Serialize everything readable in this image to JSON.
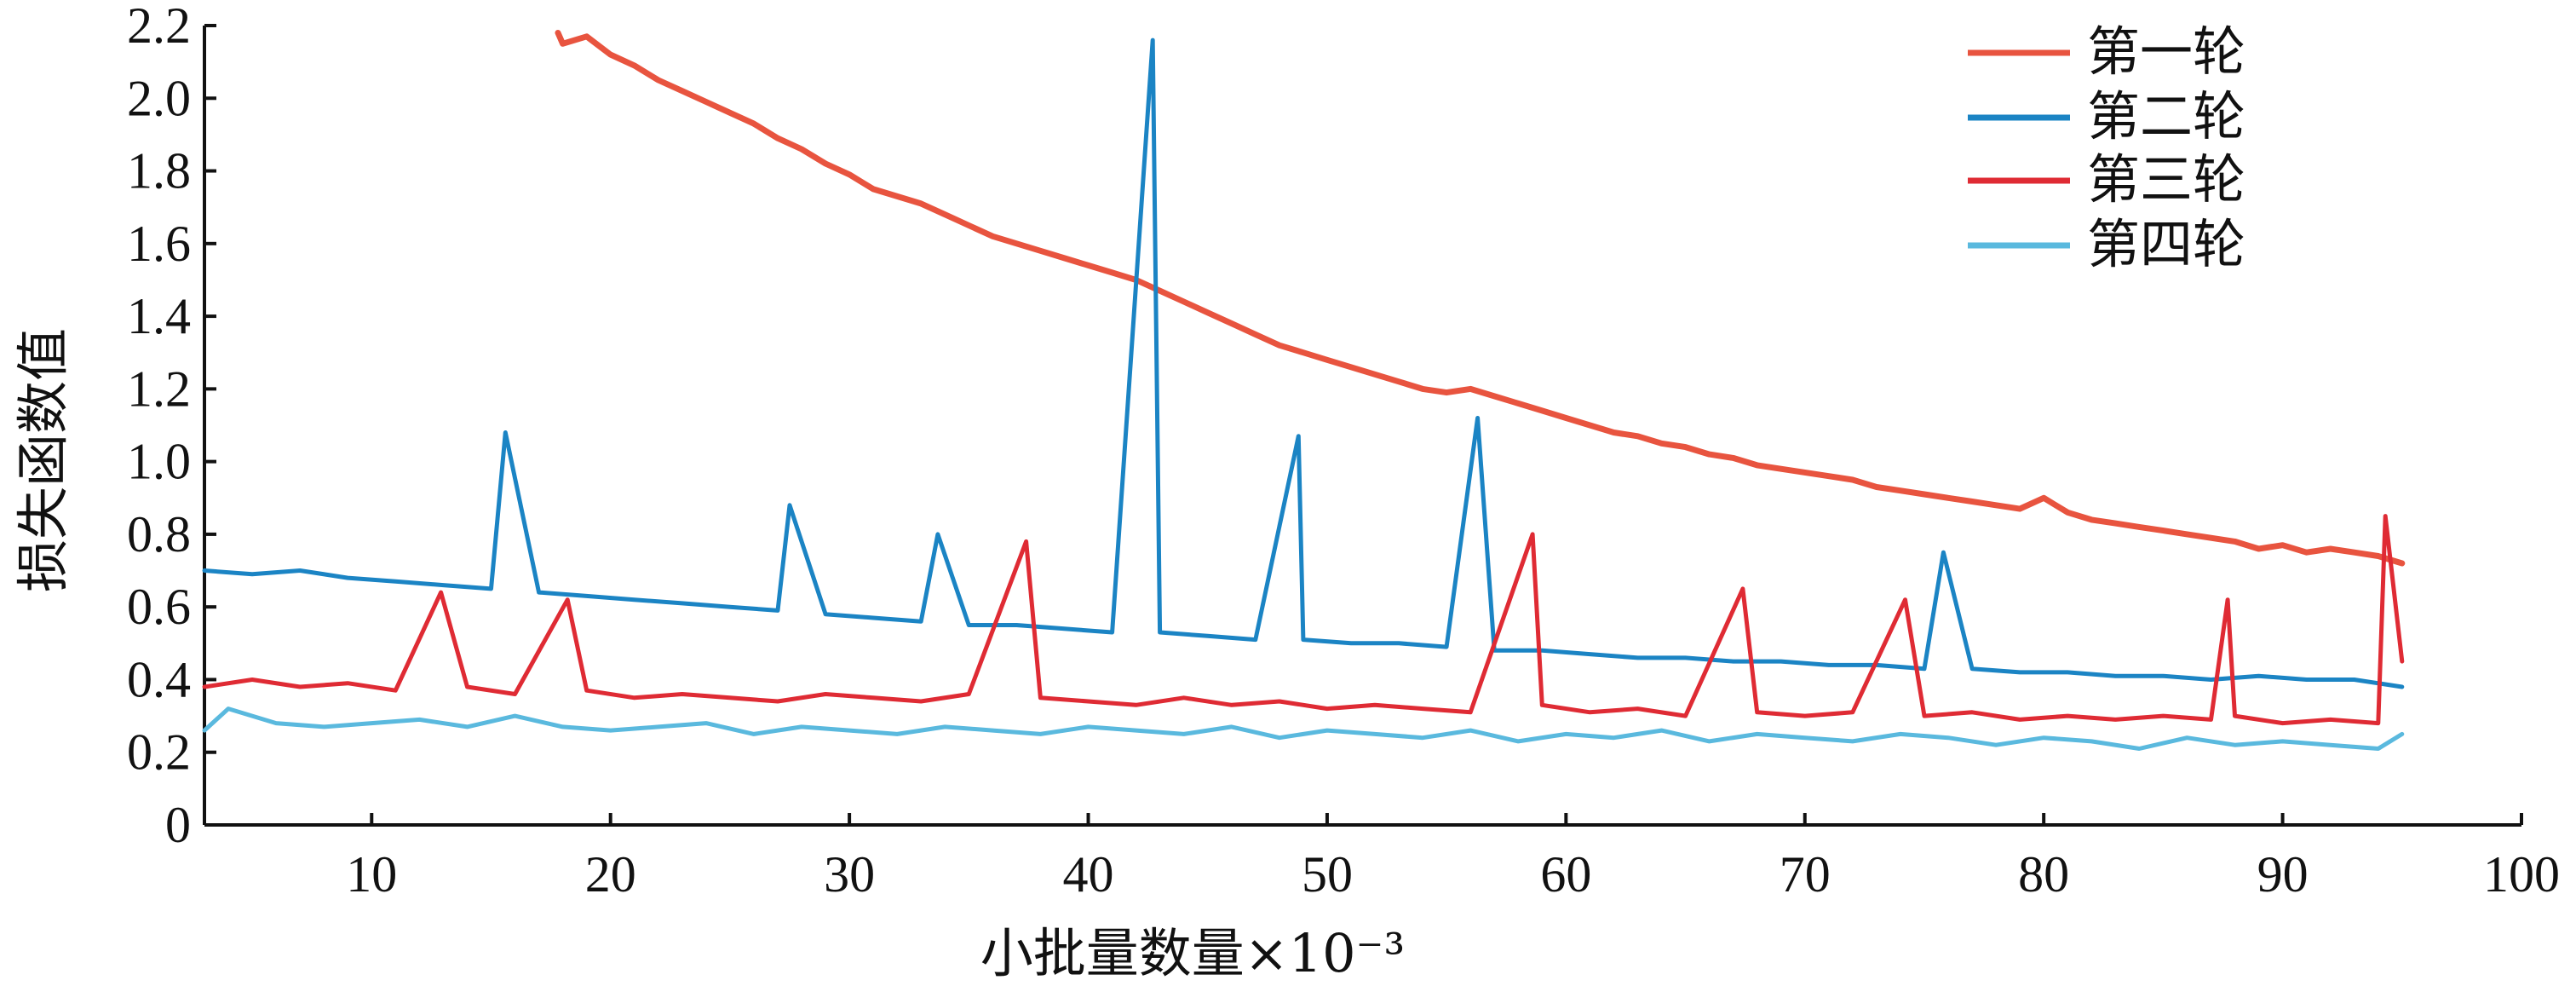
{
  "chart_data": {
    "type": "line",
    "title": "",
    "xlabel": "小批量数量×10⁻³",
    "ylabel": "损失函数值",
    "xlim": [
      3,
      100
    ],
    "ylim": [
      0,
      2.2
    ],
    "x_ticks": [
      10,
      20,
      30,
      40,
      50,
      60,
      70,
      80,
      90,
      100
    ],
    "x_tick_labels": [
      "10",
      "20",
      "30",
      "40",
      "50",
      "60",
      "70",
      "80",
      "90",
      "100"
    ],
    "y_ticks": [
      0,
      0.2,
      0.4,
      0.6,
      0.8,
      1.0,
      1.2,
      1.4,
      1.6,
      1.8,
      2.0,
      2.2
    ],
    "y_tick_labels": [
      "0",
      "0.2",
      "0.4",
      "0.6",
      "0.8",
      "1.0",
      "1.2",
      "1.4",
      "1.6",
      "1.8",
      "2.0",
      "2.2"
    ],
    "grid": false,
    "legend_position": "top-right",
    "series": [
      {
        "name": "第一轮",
        "color": "#e8543f",
        "x": [
          17.8,
          18,
          19,
          20,
          21,
          22,
          23,
          24,
          25,
          26,
          27,
          28,
          29,
          30,
          31,
          32,
          33,
          34,
          35,
          36,
          37,
          38,
          39,
          40,
          41,
          42,
          43,
          44,
          45,
          46,
          47,
          48,
          49,
          50,
          51,
          52,
          53,
          54,
          55,
          56,
          57,
          58,
          59,
          60,
          61,
          62,
          63,
          64,
          65,
          66,
          67,
          68,
          69,
          70,
          71,
          72,
          73,
          74,
          75,
          76,
          77,
          78,
          79,
          80,
          81,
          82,
          83,
          84,
          85,
          86,
          87,
          88,
          89,
          90,
          91,
          92,
          93,
          94,
          95
        ],
        "values": [
          2.18,
          2.15,
          2.17,
          2.12,
          2.09,
          2.05,
          2.02,
          1.99,
          1.96,
          1.93,
          1.89,
          1.86,
          1.82,
          1.79,
          1.75,
          1.73,
          1.71,
          1.68,
          1.65,
          1.62,
          1.6,
          1.58,
          1.56,
          1.54,
          1.52,
          1.5,
          1.47,
          1.44,
          1.41,
          1.38,
          1.35,
          1.32,
          1.3,
          1.28,
          1.26,
          1.24,
          1.22,
          1.2,
          1.19,
          1.2,
          1.18,
          1.16,
          1.14,
          1.12,
          1.1,
          1.08,
          1.07,
          1.05,
          1.04,
          1.02,
          1.01,
          0.99,
          0.98,
          0.97,
          0.96,
          0.95,
          0.93,
          0.92,
          0.91,
          0.9,
          0.89,
          0.88,
          0.87,
          0.9,
          0.86,
          0.84,
          0.83,
          0.82,
          0.81,
          0.8,
          0.79,
          0.78,
          0.76,
          0.77,
          0.75,
          0.76,
          0.75,
          0.74,
          0.72
        ]
      },
      {
        "name": "第二轮",
        "color": "#1b84c4",
        "x": [
          3,
          5,
          7,
          9,
          11,
          13,
          15,
          15.6,
          17,
          19,
          21,
          23,
          25,
          27,
          27.5,
          29,
          31,
          33,
          33.7,
          35,
          37,
          39,
          41,
          42.7,
          43,
          45,
          47,
          48.8,
          49,
          51,
          53,
          55,
          56.3,
          57,
          59,
          61,
          63,
          65,
          67,
          69,
          71,
          73,
          75,
          75.8,
          77,
          79,
          81,
          83,
          85,
          87,
          89,
          91,
          93,
          95
        ],
        "values": [
          0.7,
          0.69,
          0.7,
          0.68,
          0.67,
          0.66,
          0.65,
          1.08,
          0.64,
          0.63,
          0.62,
          0.61,
          0.6,
          0.59,
          0.88,
          0.58,
          0.57,
          0.56,
          0.8,
          0.55,
          0.55,
          0.54,
          0.53,
          2.16,
          0.53,
          0.52,
          0.51,
          1.07,
          0.51,
          0.5,
          0.5,
          0.49,
          1.12,
          0.48,
          0.48,
          0.47,
          0.46,
          0.46,
          0.45,
          0.45,
          0.44,
          0.44,
          0.43,
          0.75,
          0.43,
          0.42,
          0.42,
          0.41,
          0.41,
          0.4,
          0.41,
          0.4,
          0.4,
          0.38
        ]
      },
      {
        "name": "第三轮",
        "color": "#df2b34",
        "x": [
          3,
          5,
          7,
          9,
          11,
          12.9,
          14,
          16,
          18.2,
          19,
          21,
          23,
          25,
          27,
          29,
          31,
          33,
          35,
          37.4,
          38,
          40,
          42,
          44,
          46,
          48,
          50,
          52,
          54,
          56,
          58.6,
          59,
          61,
          63,
          65,
          67.4,
          68,
          70,
          72,
          74.2,
          75,
          77,
          79,
          81,
          83,
          85,
          87,
          87.7,
          88,
          90,
          92,
          94,
          94.3,
          95
        ],
        "values": [
          0.38,
          0.4,
          0.38,
          0.39,
          0.37,
          0.64,
          0.38,
          0.36,
          0.62,
          0.37,
          0.35,
          0.36,
          0.35,
          0.34,
          0.36,
          0.35,
          0.34,
          0.36,
          0.78,
          0.35,
          0.34,
          0.33,
          0.35,
          0.33,
          0.34,
          0.32,
          0.33,
          0.32,
          0.31,
          0.8,
          0.33,
          0.31,
          0.32,
          0.3,
          0.65,
          0.31,
          0.3,
          0.31,
          0.62,
          0.3,
          0.31,
          0.29,
          0.3,
          0.29,
          0.3,
          0.29,
          0.62,
          0.3,
          0.28,
          0.29,
          0.28,
          0.85,
          0.45
        ]
      },
      {
        "name": "第四轮",
        "color": "#5ab9de",
        "x": [
          3,
          4,
          6,
          8,
          10,
          12,
          14,
          16,
          18,
          20,
          22,
          24,
          26,
          28,
          30,
          32,
          34,
          36,
          38,
          40,
          42,
          44,
          46,
          48,
          50,
          52,
          54,
          56,
          58,
          60,
          62,
          64,
          66,
          68,
          70,
          72,
          74,
          76,
          78,
          80,
          82,
          84,
          86,
          88,
          90,
          92,
          94,
          95
        ],
        "values": [
          0.26,
          0.32,
          0.28,
          0.27,
          0.28,
          0.29,
          0.27,
          0.3,
          0.27,
          0.26,
          0.27,
          0.28,
          0.25,
          0.27,
          0.26,
          0.25,
          0.27,
          0.26,
          0.25,
          0.27,
          0.26,
          0.25,
          0.27,
          0.24,
          0.26,
          0.25,
          0.24,
          0.26,
          0.23,
          0.25,
          0.24,
          0.26,
          0.23,
          0.25,
          0.24,
          0.23,
          0.25,
          0.24,
          0.22,
          0.24,
          0.23,
          0.21,
          0.24,
          0.22,
          0.23,
          0.22,
          0.21,
          0.25
        ]
      }
    ]
  }
}
